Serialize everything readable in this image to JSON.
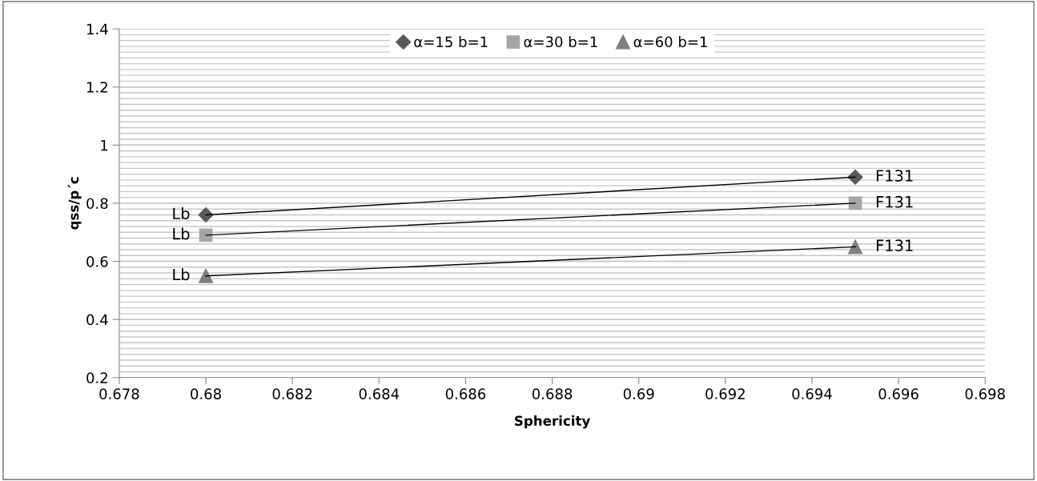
{
  "chart_data": {
    "type": "scatter",
    "xlabel": "Sphericity",
    "ylabel": "qss/p΄c",
    "x": [
      0.68,
      0.695
    ],
    "series": [
      {
        "name": "α=15 b=1",
        "color": "#595959",
        "marker": "diamond",
        "values": [
          0.76,
          0.89
        ],
        "value_labels": [
          "Lb",
          "F131"
        ]
      },
      {
        "name": "α=30 b=1",
        "color": "#a6a6a6",
        "marker": "square",
        "values": [
          0.69,
          0.8
        ],
        "value_labels": [
          "Lb",
          "F131"
        ]
      },
      {
        "name": "α=60 b=1",
        "color": "#7f7f7f",
        "marker": "triangle",
        "values": [
          0.55,
          0.65
        ],
        "value_labels": [
          "Lb",
          "F131"
        ]
      },
      {
        "type": "line",
        "color": "#000000",
        "marker": "none",
        "values": [
          0.76,
          0.89
        ]
      },
      {
        "type": "line",
        "color": "#000000",
        "marker": "none",
        "values": [
          0.69,
          0.8
        ]
      },
      {
        "type": "line",
        "color": "#000000",
        "marker": "none",
        "values": [
          0.55,
          0.65
        ]
      }
    ],
    "xlim": [
      0.678,
      0.698
    ],
    "xticks": [
      0.678,
      0.68,
      0.682,
      0.684,
      0.686,
      0.688,
      0.69,
      0.692,
      0.694,
      0.696,
      0.698
    ],
    "ylim": [
      0.2,
      1.4
    ],
    "yticks": [
      0.2,
      0.4,
      0.6,
      0.8,
      1,
      1.2,
      1.4
    ],
    "grid": "y",
    "legend": "top"
  }
}
